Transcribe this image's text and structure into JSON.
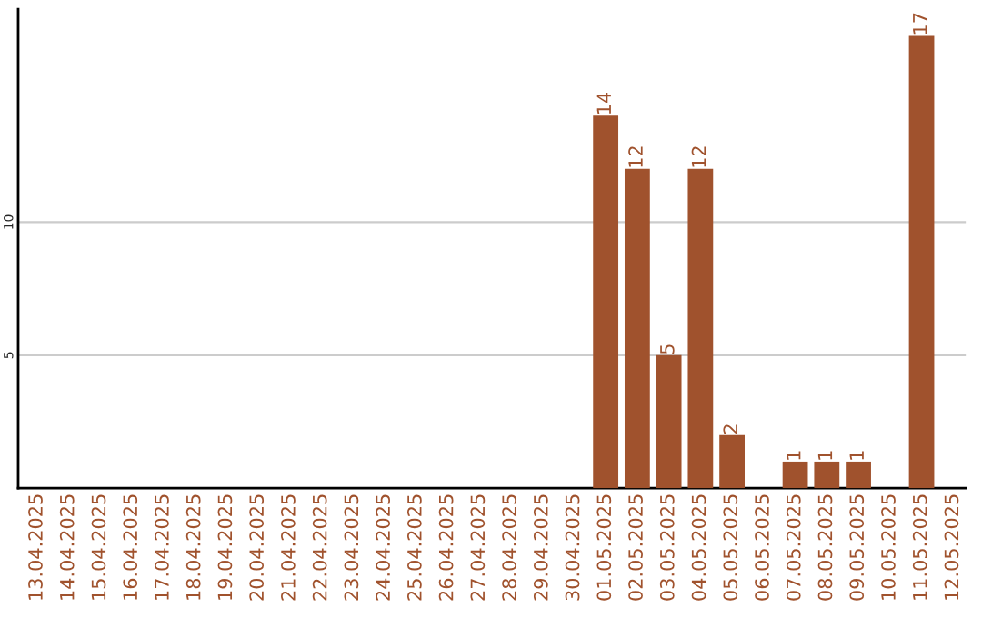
{
  "chart_data": {
    "type": "bar",
    "categories": [
      "13.04.2025",
      "14.04.2025",
      "15.04.2025",
      "16.04.2025",
      "17.04.2025",
      "18.04.2025",
      "19.04.2025",
      "20.04.2025",
      "21.04.2025",
      "22.04.2025",
      "23.04.2025",
      "24.04.2025",
      "25.04.2025",
      "26.04.2025",
      "27.04.2025",
      "28.04.2025",
      "29.04.2025",
      "30.04.2025",
      "01.05.2025",
      "02.05.2025",
      "03.05.2025",
      "04.05.2025",
      "05.05.2025",
      "06.05.2025",
      "07.05.2025",
      "08.05.2025",
      "09.05.2025",
      "10.05.2025",
      "11.05.2025",
      "12.05.2025"
    ],
    "values": [
      0,
      0,
      0,
      0,
      0,
      0,
      0,
      0,
      0,
      0,
      0,
      0,
      0,
      0,
      0,
      0,
      0,
      0,
      14,
      12,
      5,
      12,
      2,
      0,
      1,
      1,
      1,
      0,
      17,
      0
    ],
    "value_labels": [
      null,
      null,
      null,
      null,
      null,
      null,
      null,
      null,
      null,
      null,
      null,
      null,
      null,
      null,
      null,
      null,
      null,
      null,
      "14",
      "12",
      "5",
      "12",
      "2",
      null,
      "1",
      "1",
      "1",
      null,
      "17",
      null
    ],
    "color": "#a0522d",
    "ylim": [
      0,
      18
    ],
    "yticks": [
      5,
      10
    ],
    "grid": "y",
    "legend": false
  }
}
